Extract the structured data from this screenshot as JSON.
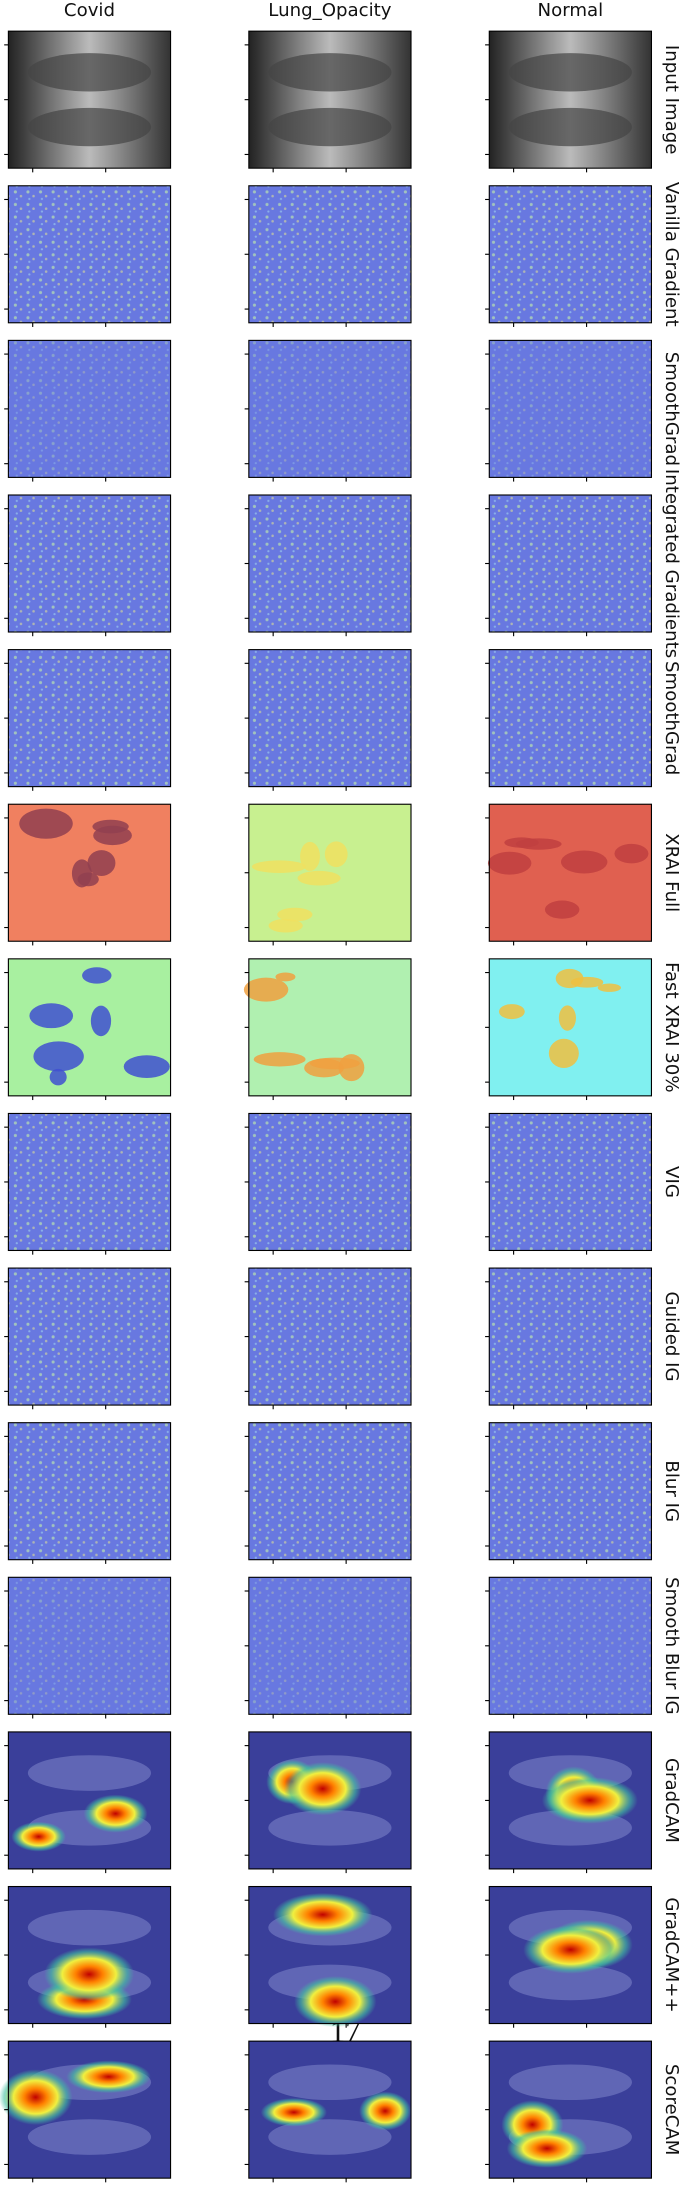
{
  "columns": [
    "Covid",
    "Lung_Opacity",
    "Normal"
  ],
  "rows": [
    "Input Image",
    "Vanilla Gradient",
    "SmoothGrad",
    "Integrated Gradients",
    "SmoothGrad",
    "XRAI Full",
    "Fast XRAI 30%",
    "VIG",
    "Guided IG",
    "Blur IG",
    "Smooth Blur IG",
    "GradCAM",
    "GradCAM++",
    "ScoreCAM"
  ],
  "page_number": "17"
}
